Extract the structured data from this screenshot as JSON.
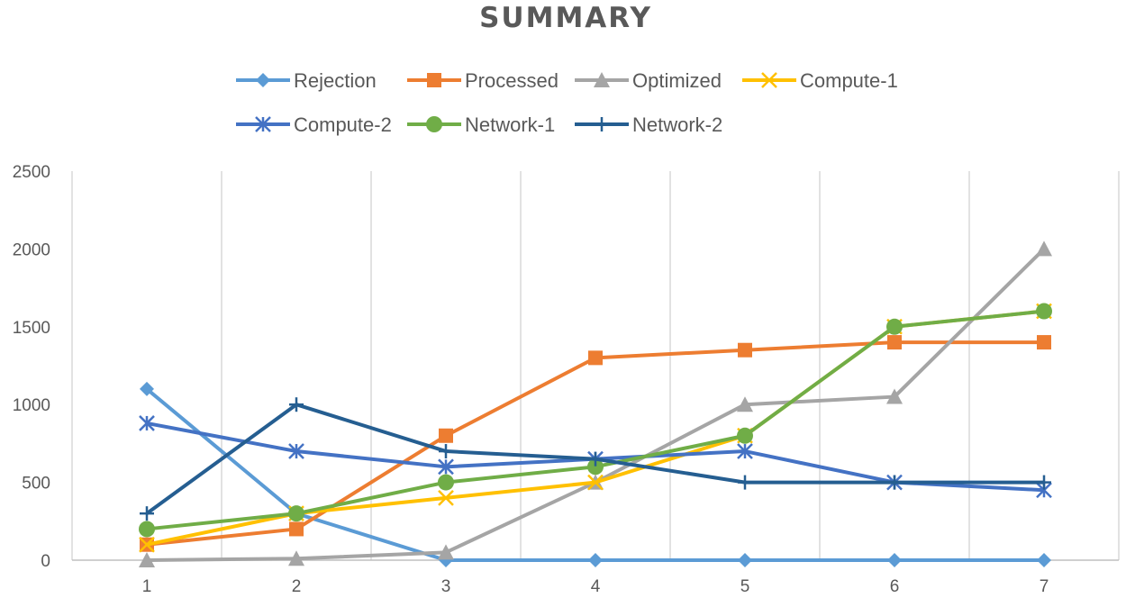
{
  "chart_data": {
    "type": "line",
    "title": "SUMMARY",
    "xlabel": "",
    "ylabel": "",
    "x": [
      1,
      2,
      3,
      4,
      5,
      6,
      7
    ],
    "ylim": [
      0,
      2500
    ],
    "yticks": [
      0,
      500,
      1000,
      1500,
      2000,
      2500
    ],
    "grid": "vertical",
    "legend_position": "top",
    "series": [
      {
        "name": "Rejection",
        "color": "#5B9BD5",
        "marker": "diamond",
        "values": [
          1100,
          300,
          0,
          0,
          0,
          0,
          0
        ]
      },
      {
        "name": "Processed",
        "color": "#ED7D31",
        "marker": "square",
        "values": [
          100,
          200,
          800,
          1300,
          1350,
          1400,
          1400
        ]
      },
      {
        "name": "Optimized",
        "color": "#A5A5A5",
        "marker": "triangle",
        "values": [
          0,
          10,
          50,
          500,
          1000,
          1050,
          2000
        ]
      },
      {
        "name": "Compute-1",
        "color": "#FFC000",
        "marker": "x",
        "values": [
          100,
          300,
          400,
          500,
          800,
          1500,
          1600
        ]
      },
      {
        "name": "Compute-2",
        "color": "#4472C4",
        "marker": "star",
        "values": [
          880,
          700,
          600,
          650,
          700,
          500,
          450
        ]
      },
      {
        "name": "Network-1",
        "color": "#70AD47",
        "marker": "circle",
        "values": [
          200,
          300,
          500,
          600,
          800,
          1500,
          1600
        ]
      },
      {
        "name": "Network-2",
        "color": "#255E91",
        "marker": "plus",
        "values": [
          300,
          1000,
          700,
          650,
          500,
          500,
          500
        ]
      }
    ]
  }
}
